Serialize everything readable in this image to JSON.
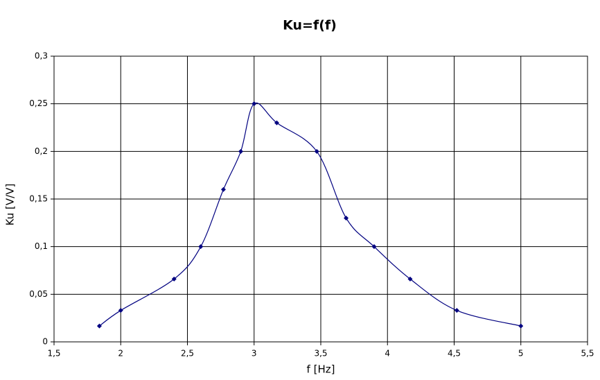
{
  "chart_data": {
    "type": "scatter-line",
    "title": "Ku=f(f)",
    "x_label": "f [Hz]",
    "y_label": "Ku [V/V]",
    "series": [
      {
        "name": "Ku",
        "color": "#000080",
        "x": [
          1.84,
          2.0,
          2.4,
          2.6,
          2.77,
          2.9,
          3.0,
          3.17,
          3.47,
          3.69,
          3.9,
          4.17,
          4.52,
          5.0
        ],
        "values": [
          0.0167,
          0.033,
          0.066,
          0.1,
          0.16,
          0.2,
          0.25,
          0.23,
          0.2,
          0.13,
          0.1,
          0.066,
          0.033,
          0.0167
        ]
      }
    ],
    "xlim": [
      1.5,
      5.5
    ],
    "xticks": [
      {
        "value": 1.5,
        "label": "1,5"
      },
      2,
      {
        "value": 2.5,
        "label": "2,5"
      },
      3,
      {
        "value": 3.5,
        "label": "3,5"
      },
      4,
      {
        "value": 4.5,
        "label": "4,5"
      },
      5,
      {
        "value": 5.5,
        "label": "5,5"
      }
    ],
    "ylim": [
      0,
      0.3
    ],
    "yticks": [
      0,
      {
        "value": 0.05,
        "label": "0,05"
      },
      {
        "value": 0.1,
        "label": "0,1"
      },
      {
        "value": 0.15,
        "label": "0,15"
      },
      {
        "value": 0.2,
        "label": "0,2"
      },
      {
        "value": 0.25,
        "label": "0,25"
      },
      {
        "value": 0.3,
        "label": "0,3"
      }
    ],
    "grid": true,
    "smooth": true
  }
}
